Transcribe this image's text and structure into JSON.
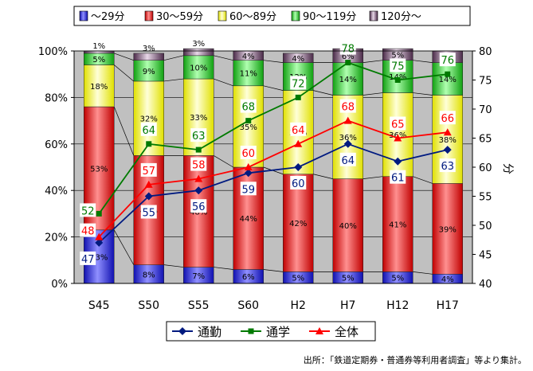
{
  "chart_data": {
    "type": "bar",
    "stacked_percent": true,
    "categories": [
      "S45",
      "S50",
      "S55",
      "S60",
      "H2",
      "H7",
      "H12",
      "H17"
    ],
    "left_axis": {
      "ticks": [
        "0%",
        "20%",
        "40%",
        "60%",
        "80%",
        "100%"
      ],
      "ylim": [
        0,
        100
      ]
    },
    "right_axis": {
      "label": "分",
      "ticks": [
        "40",
        "45",
        "50",
        "55",
        "60",
        "65",
        "70",
        "75",
        "80"
      ],
      "ylim": [
        40,
        80
      ]
    },
    "bar_series": [
      {
        "name": "～29分",
        "color": "#3a3af0",
        "values": [
          23,
          8,
          7,
          6,
          5,
          5,
          5,
          4
        ],
        "labels": [
          "23%",
          "8%",
          "7%",
          "6%",
          "5%",
          "5%",
          "5%",
          "4%"
        ]
      },
      {
        "name": "30～59分",
        "color": "#f01818",
        "values": [
          53,
          47,
          48,
          44,
          42,
          40,
          41,
          39
        ],
        "labels": [
          "53%",
          "47%",
          "48%",
          "44%",
          "42%",
          "40%",
          "41%",
          "39%"
        ]
      },
      {
        "name": "60～89分",
        "color": "#ffff50",
        "values": [
          18,
          32,
          33,
          35,
          36,
          36,
          36,
          38
        ],
        "labels": [
          "18%",
          "32%",
          "33%",
          "35%",
          "36%",
          "36%",
          "36%",
          "38%"
        ]
      },
      {
        "name": "90～119分",
        "color": "#30d030",
        "values": [
          5,
          9,
          10,
          11,
          12,
          14,
          14,
          14
        ],
        "labels": [
          "5%",
          "9%",
          "10%",
          "11%",
          "12%",
          "14%",
          "14%",
          "14%"
        ]
      },
      {
        "name": "120分～",
        "color": "#8a6a88",
        "values": [
          1,
          3,
          3,
          4,
          4,
          6,
          5,
          5
        ],
        "labels": [
          "1%",
          "3%",
          "3%",
          "4%",
          "4%",
          "6%",
          "5%",
          "5%"
        ]
      }
    ],
    "line_series": [
      {
        "name": "通勤",
        "color": "#001a80",
        "marker": "diamond",
        "values": [
          47,
          55,
          56,
          59,
          60,
          64,
          61,
          63
        ]
      },
      {
        "name": "通学",
        "color": "#007a00",
        "marker": "square",
        "values": [
          52,
          64,
          63,
          68,
          72,
          78,
          75,
          76
        ]
      },
      {
        "name": "全体",
        "color": "#ff0000",
        "marker": "triangle",
        "values": [
          48,
          57,
          58,
          60,
          64,
          68,
          65,
          66
        ]
      }
    ],
    "bar_legend_placement": "top",
    "line_legend_placement": "bottom",
    "grid": true,
    "plot_background": "#c0c0c0"
  },
  "source_note": "出所：「鉄道定期券・普通券等利用者調査」等より集計。"
}
